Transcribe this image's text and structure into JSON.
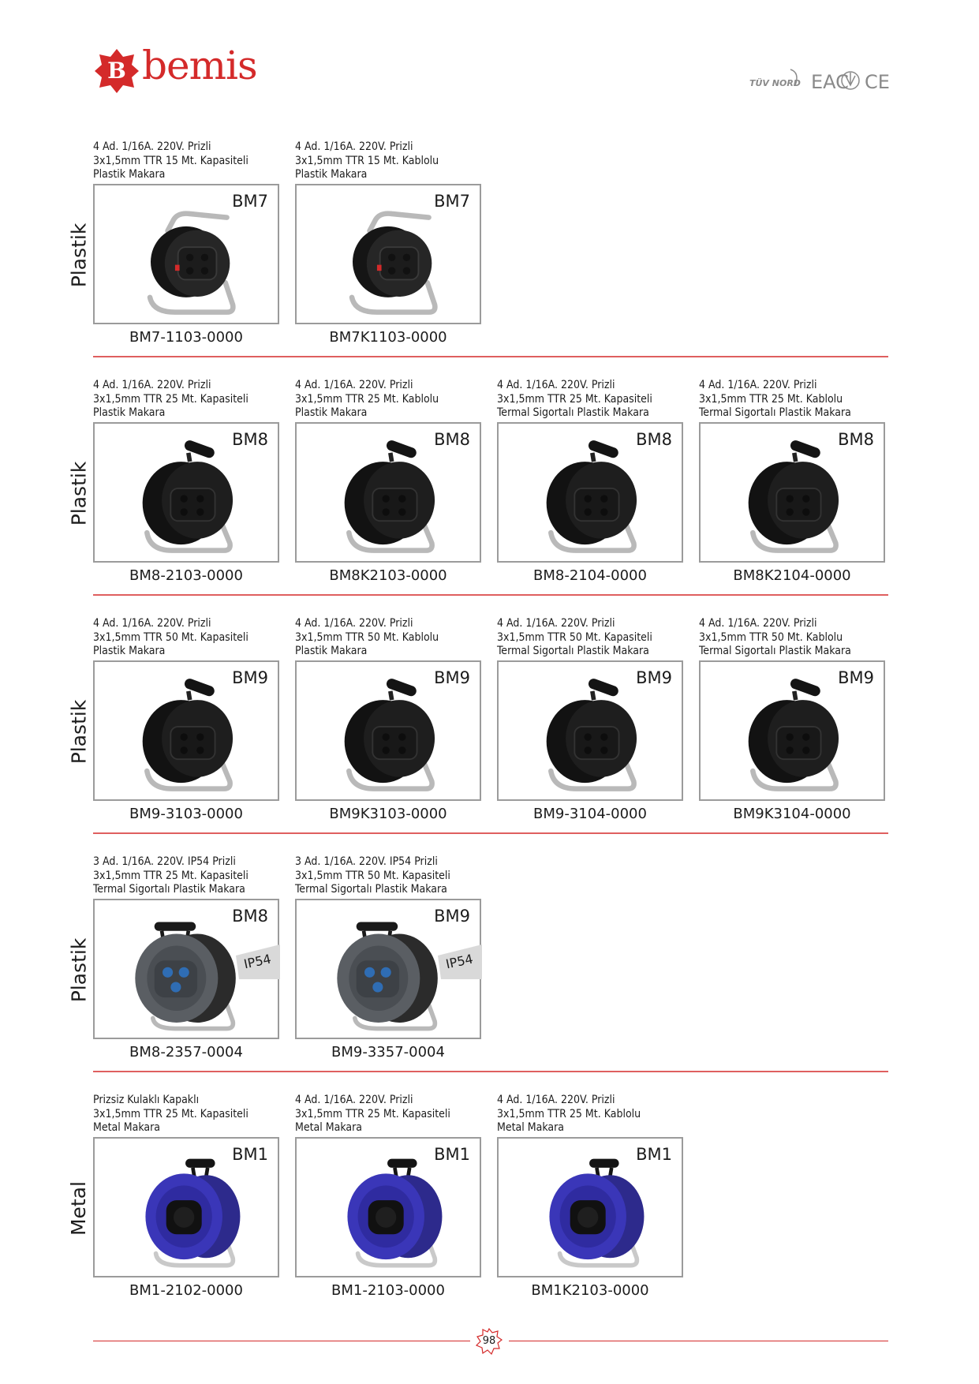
{
  "brand": {
    "name": "bemis",
    "letter": "B",
    "color": "#d42a2a"
  },
  "certifications": {
    "tuv": "TÜV NORD",
    "eac": "EAC",
    "ce": "CE"
  },
  "sections": [
    {
      "label": "Plastik",
      "products": [
        {
          "desc": [
            "4 Ad. 1/16A. 220V. Prizli",
            "3x1,5mm TTR 15 Mt. Kapasiteli",
            "Plastik Makara"
          ],
          "model": "BM7",
          "code": "BM7-1103-0000",
          "style": "bm7",
          "ip": ""
        },
        {
          "desc": [
            "4 Ad. 1/16A. 220V. Prizli",
            "3x1,5mm TTR 15 Mt. Kablolu",
            "Plastik Makara"
          ],
          "model": "BM7",
          "code": "BM7K1103-0000",
          "style": "bm7",
          "ip": ""
        }
      ]
    },
    {
      "label": "Plastik",
      "products": [
        {
          "desc": [
            "4 Ad. 1/16A. 220V. Prizli",
            "3x1,5mm TTR 25 Mt. Kapasiteli",
            "Plastik Makara"
          ],
          "model": "BM8",
          "code": "BM8-2103-0000",
          "style": "black",
          "ip": ""
        },
        {
          "desc": [
            "4 Ad. 1/16A. 220V. Prizli",
            "3x1,5mm TTR 25 Mt. Kablolu",
            "Plastik Makara"
          ],
          "model": "BM8",
          "code": "BM8K2103-0000",
          "style": "black",
          "ip": ""
        },
        {
          "desc": [
            "4 Ad. 1/16A. 220V. Prizli",
            "3x1,5mm TTR 25 Mt. Kapasiteli",
            "Termal Sigortalı Plastik Makara"
          ],
          "model": "BM8",
          "code": "BM8-2104-0000",
          "style": "black",
          "ip": ""
        },
        {
          "desc": [
            "4 Ad. 1/16A. 220V. Prizli",
            "3x1,5mm TTR 25 Mt. Kablolu",
            "Termal Sigortalı Plastik Makara"
          ],
          "model": "BM8",
          "code": "BM8K2104-0000",
          "style": "black",
          "ip": ""
        }
      ]
    },
    {
      "label": "Plastik",
      "products": [
        {
          "desc": [
            "4 Ad. 1/16A. 220V. Prizli",
            "3x1,5mm TTR 50 Mt. Kapasiteli",
            "Plastik Makara"
          ],
          "model": "BM9",
          "code": "BM9-3103-0000",
          "style": "black",
          "ip": ""
        },
        {
          "desc": [
            "4 Ad. 1/16A. 220V. Prizli",
            "3x1,5mm TTR 50 Mt. Kablolu",
            "Plastik Makara"
          ],
          "model": "BM9",
          "code": "BM9K3103-0000",
          "style": "black",
          "ip": ""
        },
        {
          "desc": [
            "4 Ad. 1/16A. 220V. Prizli",
            "3x1,5mm TTR 50 Mt. Kapasiteli",
            "Termal Sigortalı Plastik Makara"
          ],
          "model": "BM9",
          "code": "BM9-3104-0000",
          "style": "black",
          "ip": ""
        },
        {
          "desc": [
            "4 Ad. 1/16A. 220V. Prizli",
            "3x1,5mm TTR 50 Mt. Kablolu",
            "Termal Sigortalı Plastik Makara"
          ],
          "model": "BM9",
          "code": "BM9K3104-0000",
          "style": "black",
          "ip": ""
        }
      ]
    },
    {
      "label": "Plastik",
      "products": [
        {
          "desc": [
            "3 Ad. 1/16A. 220V. IP54 Prizli",
            "3x1,5mm TTR 25 Mt. Kapasiteli",
            "Termal Sigortalı Plastik Makara"
          ],
          "model": "BM8",
          "code": "BM8-2357-0004",
          "style": "grey",
          "ip": "IP54"
        },
        {
          "desc": [
            "3 Ad. 1/16A. 220V. IP54 Prizli",
            "3x1,5mm TTR 50 Mt. Kapasiteli",
            "Termal Sigortalı Plastik Makara"
          ],
          "model": "BM9",
          "code": "BM9-3357-0004",
          "style": "grey",
          "ip": "IP54"
        }
      ]
    },
    {
      "label": "Metal",
      "products": [
        {
          "desc": [
            "Prizsiz Kulaklı Kapaklı",
            "3x1,5mm TTR 25 Mt. Kapasiteli",
            "Metal Makara"
          ],
          "model": "BM1",
          "code": "BM1-2102-0000",
          "style": "blue",
          "ip": ""
        },
        {
          "desc": [
            "4 Ad. 1/16A. 220V. Prizli",
            "3x1,5mm TTR 25 Mt. Kapasiteli",
            "Metal Makara"
          ],
          "model": "BM1",
          "code": "BM1-2103-0000",
          "style": "blue",
          "ip": ""
        },
        {
          "desc": [
            "4 Ad. 1/16A. 220V. Prizli",
            "3x1,5mm TTR 25 Mt. Kablolu",
            "Metal Makara"
          ],
          "model": "BM1",
          "code": "BM1K2103-0000",
          "style": "blue",
          "ip": ""
        }
      ]
    }
  ],
  "footer": {
    "page_number": "98"
  }
}
